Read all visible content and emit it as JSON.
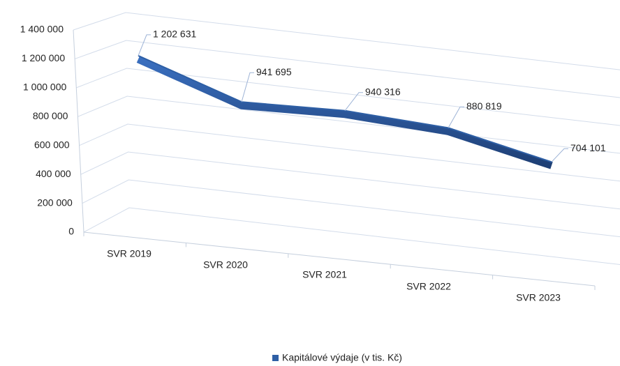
{
  "chart_data": {
    "type": "line3d",
    "categories": [
      "SVR 2019",
      "SVR 2020",
      "SVR 2021",
      "SVR 2022",
      "SVR 2023"
    ],
    "series": [
      {
        "name": "Kapitálové výdaje (v tis. Kč)",
        "color": "#2e5fa5",
        "values": [
          1202631,
          941695,
          940316,
          880819,
          704101
        ],
        "value_labels": [
          "1 202 631",
          "941 695",
          "940 316",
          "880 819",
          "704 101"
        ]
      }
    ],
    "ylim": [
      0,
      1400000
    ],
    "yticks": [
      0,
      {
        "value": 200000,
        "label": "200 000"
      },
      {
        "value": 400000,
        "label": "400 000"
      },
      {
        "value": 600000,
        "label": "600 000"
      },
      {
        "value": 800000,
        "label": "800 000"
      },
      {
        "value": 1000000,
        "label": "1 000 000"
      },
      {
        "value": 1200000,
        "label": "1 200 000"
      },
      {
        "value": 1400000,
        "label": "1 400 000"
      }
    ],
    "grid": true,
    "legend": "bottom"
  }
}
